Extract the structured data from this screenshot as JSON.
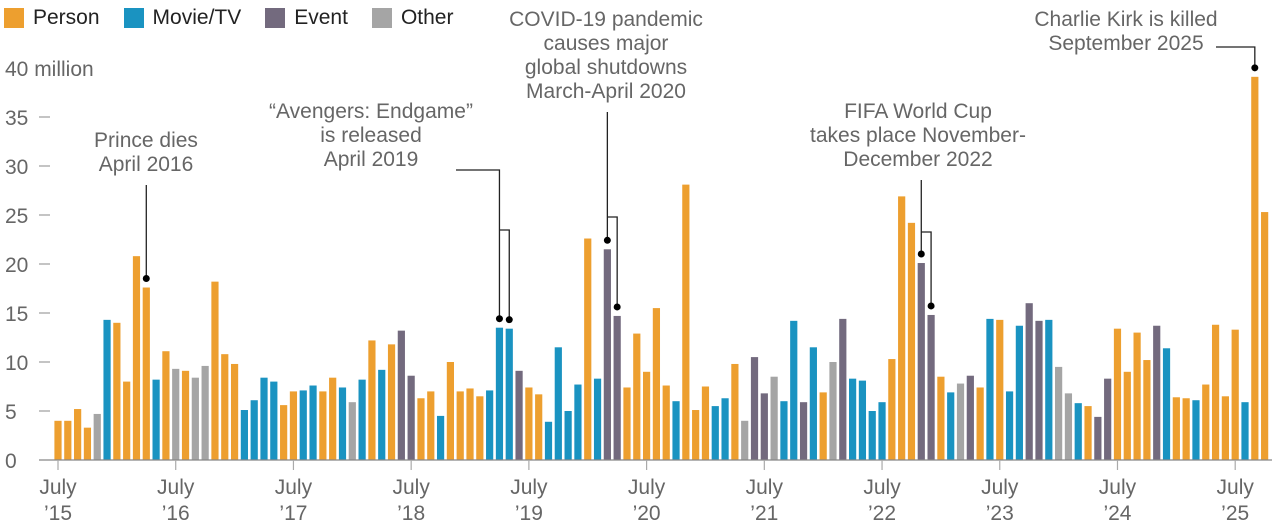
{
  "chart_data": {
    "type": "bar",
    "title": "",
    "xlabel": "",
    "ylabel": "",
    "y_unit_label": "40 million",
    "ylim": [
      0,
      40
    ],
    "yticks": [
      0,
      5,
      10,
      15,
      20,
      25,
      30,
      35,
      40
    ],
    "grid": false,
    "legend_placement": "top-left",
    "legend": [
      {
        "key": "person",
        "label": "Person",
        "color": "#ED9F2F"
      },
      {
        "key": "movie",
        "label": "Movie/TV",
        "color": "#1A93C1"
      },
      {
        "key": "event",
        "label": "Event",
        "color": "#736A7E"
      },
      {
        "key": "other",
        "label": "Other",
        "color": "#A5A5A5"
      }
    ],
    "xtick_labels": [
      {
        "month_index": 0,
        "line1": "July",
        "line2": "’15"
      },
      {
        "month_index": 12,
        "line1": "July",
        "line2": "’16"
      },
      {
        "month_index": 24,
        "line1": "July",
        "line2": "’17"
      },
      {
        "month_index": 36,
        "line1": "July",
        "line2": "’18"
      },
      {
        "month_index": 48,
        "line1": "July",
        "line2": "’19"
      },
      {
        "month_index": 60,
        "line1": "July",
        "line2": "’20"
      },
      {
        "month_index": 72,
        "line1": "July",
        "line2": "’21"
      },
      {
        "month_index": 84,
        "line1": "July",
        "line2": "’22"
      },
      {
        "month_index": 96,
        "line1": "July",
        "line2": "’23"
      },
      {
        "month_index": 108,
        "line1": "July",
        "line2": "’24"
      },
      {
        "month_index": 120,
        "line1": "July",
        "line2": "’25"
      }
    ],
    "start_month": "2015-07",
    "values": [
      4.0,
      4.0,
      5.2,
      3.3,
      4.7,
      14.3,
      14.0,
      8.0,
      20.8,
      17.6,
      8.2,
      11.1,
      9.3,
      9.1,
      8.4,
      9.6,
      18.2,
      10.8,
      9.8,
      5.1,
      6.1,
      8.4,
      8.0,
      5.6,
      7.0,
      7.1,
      7.6,
      7.0,
      8.4,
      7.4,
      5.9,
      8.2,
      12.2,
      9.2,
      11.8,
      13.2,
      8.6,
      6.3,
      7.0,
      4.5,
      10.0,
      7.0,
      7.3,
      6.5,
      7.1,
      13.5,
      13.4,
      9.1,
      7.4,
      6.7,
      3.9,
      11.5,
      5.0,
      7.7,
      22.6,
      8.3,
      21.5,
      14.7,
      7.4,
      12.9,
      9.0,
      15.5,
      7.6,
      6.0,
      28.1,
      5.1,
      7.5,
      5.5,
      6.3,
      9.8,
      4.0,
      10.5,
      6.8,
      8.5,
      6.0,
      14.2,
      5.9,
      11.5,
      6.9,
      10.0,
      14.4,
      8.3,
      8.1,
      5.0,
      5.9,
      10.3,
      26.9,
      24.2,
      20.1,
      14.8,
      8.5,
      6.9,
      7.8,
      8.6,
      7.4,
      14.4,
      14.3,
      7.0,
      13.7,
      16.0,
      14.2,
      14.3,
      9.5,
      6.8,
      5.8,
      5.5,
      4.4,
      8.3,
      13.4,
      9.0,
      13.0,
      10.2,
      13.7,
      11.4,
      6.4,
      6.3,
      6.1,
      7.7,
      13.8,
      6.5,
      13.3,
      5.9,
      39.1,
      25.3
    ],
    "categories": [
      "person",
      "person",
      "person",
      "person",
      "other",
      "movie",
      "person",
      "person",
      "person",
      "person",
      "movie",
      "person",
      "other",
      "person",
      "other",
      "other",
      "person",
      "person",
      "person",
      "movie",
      "movie",
      "movie",
      "movie",
      "person",
      "person",
      "movie",
      "movie",
      "person",
      "person",
      "movie",
      "other",
      "movie",
      "person",
      "movie",
      "person",
      "event",
      "event",
      "person",
      "person",
      "movie",
      "person",
      "person",
      "person",
      "person",
      "movie",
      "movie",
      "movie",
      "event",
      "person",
      "person",
      "movie",
      "movie",
      "movie",
      "movie",
      "person",
      "movie",
      "event",
      "event",
      "person",
      "person",
      "person",
      "person",
      "person",
      "movie",
      "person",
      "person",
      "person",
      "movie",
      "movie",
      "person",
      "other",
      "event",
      "event",
      "other",
      "movie",
      "movie",
      "event",
      "movie",
      "person",
      "other",
      "event",
      "movie",
      "movie",
      "movie",
      "movie",
      "person",
      "person",
      "person",
      "event",
      "event",
      "person",
      "movie",
      "other",
      "event",
      "person",
      "movie",
      "person",
      "movie",
      "movie",
      "event",
      "event",
      "movie",
      "other",
      "other",
      "movie",
      "person",
      "event",
      "event",
      "person",
      "person",
      "person",
      "person",
      "event",
      "movie",
      "person",
      "person",
      "movie",
      "person",
      "person",
      "person",
      "person",
      "movie",
      "person",
      "person"
    ],
    "annotations": [
      {
        "id": "prince",
        "lines": [
          "Prince dies",
          "April 2016"
        ],
        "targets": [
          9
        ]
      },
      {
        "id": "avengers",
        "lines": [
          "“Avengers: Endgame”",
          "is released",
          "April 2019"
        ],
        "targets": [
          45,
          46
        ]
      },
      {
        "id": "covid",
        "lines": [
          "COVID-19 pandemic",
          "causes major",
          "global shutdowns",
          "March-April 2020"
        ],
        "targets": [
          56,
          57
        ]
      },
      {
        "id": "fifa",
        "lines": [
          "FIFA World Cup",
          "takes place November-",
          "December 2022"
        ],
        "targets": [
          88,
          89
        ]
      },
      {
        "id": "kirk",
        "lines": [
          "Charlie Kirk is killed",
          "September 2025"
        ],
        "targets": [
          122
        ]
      }
    ]
  }
}
